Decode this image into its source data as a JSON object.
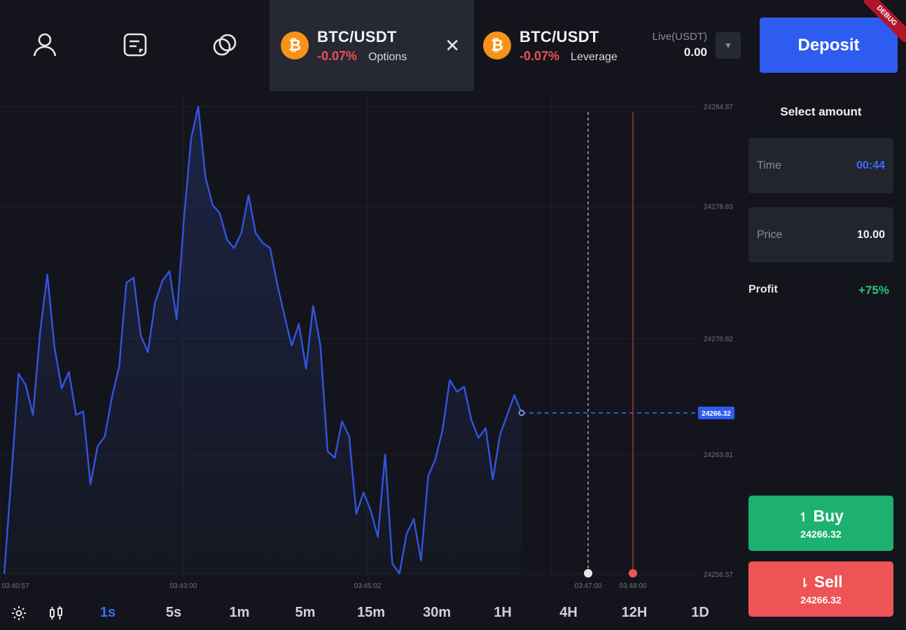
{
  "nav": {
    "icons": [
      "user-icon",
      "document-icon",
      "linked-rings-icon"
    ]
  },
  "tabs": [
    {
      "pair": "BTC/USDT",
      "change": "-0.07%",
      "kind": "Options",
      "coin": "₿",
      "close": "✕"
    },
    {
      "pair": "BTC/USDT",
      "change": "-0.07%",
      "kind": "Leverage",
      "coin": "₿"
    }
  ],
  "balance": {
    "label": "Live(USDT)",
    "value": "0.00"
  },
  "deposit_label": "Deposit",
  "debug_label": "DEBUG",
  "panel": {
    "select_title": "Select amount",
    "time_label": "Time",
    "time_value": "00:44",
    "price_label": "Price",
    "price_value": "10.00",
    "profit_label": "Profit",
    "profit_value": "+75%",
    "buy_label": "Buy",
    "buy_price": "24266.32",
    "sell_label": "Sell",
    "sell_price": "24266.32",
    "buy_arrow": "↿",
    "sell_arrow": "⇂"
  },
  "colors": {
    "accent": "#3b6cff",
    "buy": "#1db170",
    "sell": "#ee5456",
    "down": "#ef4f55",
    "profit": "#2ec177"
  },
  "chart_data": {
    "type": "line",
    "y_ticks": [
      "24284.87",
      "24278.83",
      "24270.82",
      "24263.81",
      "24256.57"
    ],
    "x_ticks": [
      "03:40:57",
      "03:43:00",
      "03:45:02",
      "03:47:00",
      "03:48:00"
    ],
    "current_price": "24266.32",
    "ylim": [
      24256.57,
      24284.87
    ],
    "series": [
      {
        "values": [
          24256.57,
          24262.5,
          24268.7,
          24268.0,
          24266.2,
          24271.2,
          24274.7,
          24270.3,
          24267.8,
          24268.8,
          24266.2,
          24266.4,
          24262.0,
          24264.3,
          24264.9,
          24267.3,
          24269.1,
          24274.2,
          24274.5,
          24271.0,
          24270.0,
          24273.0,
          24274.3,
          24274.9,
          24272.0,
          24278.0,
          24282.9,
          24284.87,
          24280.6,
          24278.9,
          24278.4,
          24276.8,
          24276.3,
          24277.2,
          24279.5,
          24277.2,
          24276.6,
          24276.3,
          24274.1,
          24272.2,
          24270.4,
          24271.7,
          24269.0,
          24272.8,
          24270.4,
          24264.0,
          24263.6,
          24265.8,
          24264.9,
          24260.2,
          24261.5,
          24260.4,
          24258.8,
          24263.8,
          24257.2,
          24256.6,
          24259.0,
          24259.9,
          24257.4,
          24262.5,
          24263.5,
          24265.3,
          24268.3,
          24267.6,
          24267.9,
          24265.9,
          24264.8,
          24265.4,
          24262.3,
          24265.0,
          24266.2,
          24267.4,
          24266.32
        ]
      }
    ]
  }
}
